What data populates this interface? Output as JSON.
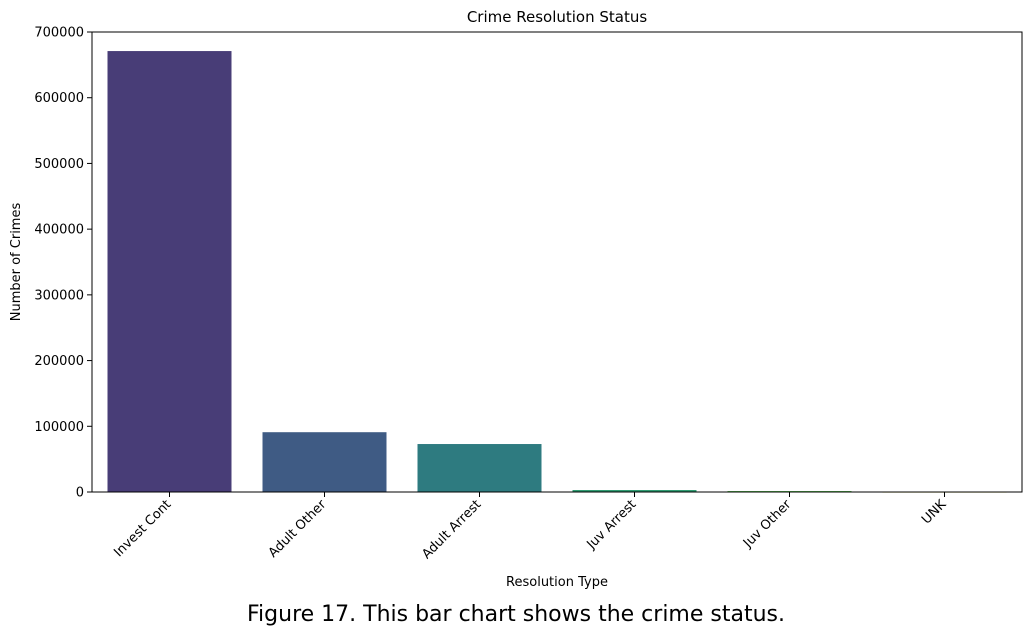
{
  "caption": "Figure 17. This bar chart shows the crime status.",
  "chart_data": {
    "type": "bar",
    "title": "Crime Resolution Status",
    "xlabel": "Resolution Type",
    "ylabel": "Number of Crimes",
    "categories": [
      "Invest Cont",
      "Adult Other",
      "Adult Arrest",
      "Juv Arrest",
      "Juv Other",
      "UNK"
    ],
    "values": [
      671000,
      91000,
      73000,
      3000,
      1500,
      300
    ],
    "ylim": [
      0,
      700000
    ],
    "yticks": [
      0,
      100000,
      200000,
      300000,
      400000,
      500000,
      600000,
      700000
    ],
    "ytick_labels": [
      "0",
      "100000",
      "200000",
      "300000",
      "400000",
      "500000",
      "600000",
      "700000"
    ],
    "colors": [
      "#483d77",
      "#3f5b84",
      "#2e7b80",
      "#2b9a6f",
      "#5fbf57",
      "#e8e45b"
    ],
    "grid": false,
    "legend": "none"
  }
}
